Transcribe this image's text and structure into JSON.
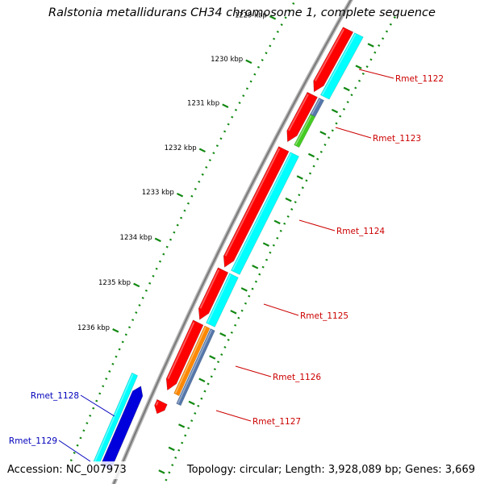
{
  "title": "Ralstonia metallidurans CH34 chromosome 1, complete sequence",
  "footer": {
    "accession": "Accession: NC_007973",
    "topology": "Topology: circular; Length: 3,928,089 bp; Genes: 3,669"
  },
  "scale": {
    "ticks": [
      {
        "label": "1229 kbp",
        "kbp": 1229
      },
      {
        "label": "1230 kbp",
        "kbp": 1230
      },
      {
        "label": "1231 kbp",
        "kbp": 1231
      },
      {
        "label": "1232 kbp",
        "kbp": 1232
      },
      {
        "label": "1233 kbp",
        "kbp": 1233
      },
      {
        "label": "1234 kbp",
        "kbp": 1234
      },
      {
        "label": "1235 kbp",
        "kbp": 1235
      },
      {
        "label": "1236 kbp",
        "kbp": 1236
      }
    ]
  },
  "genes": [
    {
      "label": "Rmet_1122",
      "strand": "minus",
      "label_color": "#cc0000"
    },
    {
      "label": "Rmet_1123",
      "strand": "minus",
      "label_color": "#cc0000"
    },
    {
      "label": "Rmet_1124",
      "strand": "minus",
      "label_color": "#cc0000"
    },
    {
      "label": "Rmet_1125",
      "strand": "minus",
      "label_color": "#cc0000"
    },
    {
      "label": "Rmet_1126",
      "strand": "minus",
      "label_color": "#cc0000"
    },
    {
      "label": "Rmet_1127",
      "strand": "minus",
      "label_color": "#cc0000"
    },
    {
      "label": "Rmet_1128",
      "strand": "plus",
      "label_color": "#0000bb"
    },
    {
      "label": "Rmet_1129",
      "strand": "plus",
      "label_color": "#0000bb"
    }
  ],
  "colors": {
    "gene_minus": "#ff0000",
    "gene_plus": "#0000dd",
    "cds": "#00ffff",
    "tick": "#118811",
    "backbone": "#999999",
    "cog_green": "#44cc22",
    "cog_steel": "#5577aa",
    "cog_orange": "#ff8800"
  }
}
